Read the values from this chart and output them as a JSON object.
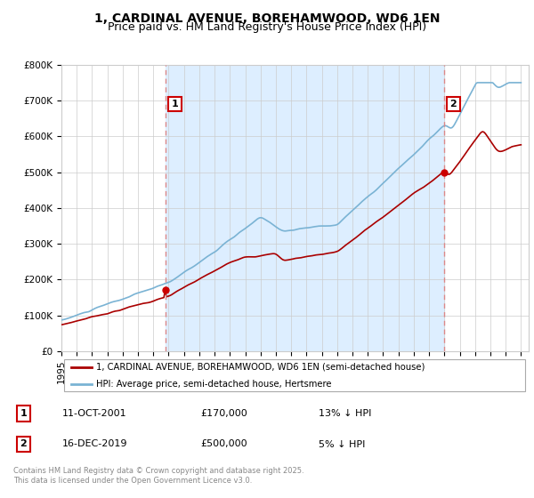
{
  "title": "1, CARDINAL AVENUE, BOREHAMWOOD, WD6 1EN",
  "subtitle": "Price paid vs. HM Land Registry's House Price Index (HPI)",
  "ylim": [
    0,
    800000
  ],
  "yticks": [
    0,
    100000,
    200000,
    300000,
    400000,
    500000,
    600000,
    700000,
    800000
  ],
  "ytick_labels": [
    "£0",
    "£100K",
    "£200K",
    "£300K",
    "£400K",
    "£500K",
    "£600K",
    "£700K",
    "£800K"
  ],
  "background_color": "#ffffff",
  "grid_color": "#cccccc",
  "line_color_red": "#aa0000",
  "line_color_blue": "#7ab3d4",
  "vline_color": "#dd8888",
  "shade_color": "#ddeeff",
  "annotation_border_color": "#cc0000",
  "dot_color": "#cc0000",
  "sale1_x": 2001.79,
  "sale1_label": "1",
  "sale1_price": 170000,
  "sale2_x": 2019.96,
  "sale2_label": "2",
  "sale2_price": 500000,
  "legend_label_red": "1, CARDINAL AVENUE, BOREHAMWOOD, WD6 1EN (semi-detached house)",
  "legend_label_blue": "HPI: Average price, semi-detached house, Hertsmere",
  "table_row1": [
    "1",
    "11-OCT-2001",
    "£170,000",
    "13% ↓ HPI"
  ],
  "table_row2": [
    "2",
    "16-DEC-2019",
    "£500,000",
    "5% ↓ HPI"
  ],
  "footer": "Contains HM Land Registry data © Crown copyright and database right 2025.\nThis data is licensed under the Open Government Licence v3.0.",
  "title_fontsize": 10,
  "subtitle_fontsize": 9,
  "tick_fontsize": 7.5
}
